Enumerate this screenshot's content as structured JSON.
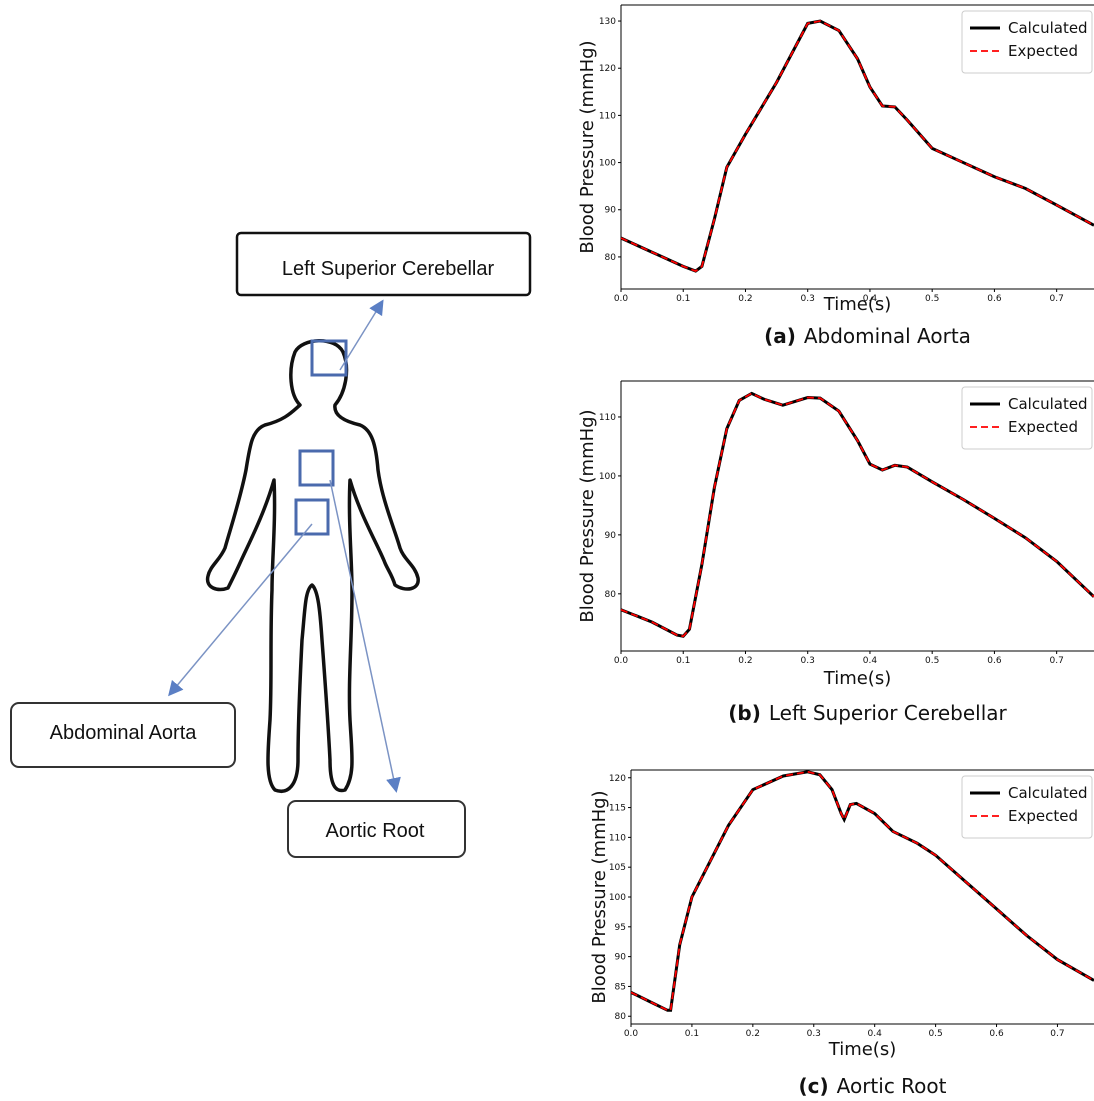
{
  "diagram": {
    "labels": [
      "Left Superior Cerebellar",
      "Abdominal Aorta",
      "Aortic Root"
    ]
  },
  "chart_data": [
    {
      "type": "line",
      "caption_label": "(a)",
      "caption": "Abdominal Aorta",
      "xlabel": "Time(s)",
      "ylabel": "Blood Pressure (mmHg)",
      "legend": "upper right",
      "x": [
        0,
        0.05,
        0.1,
        0.12,
        0.13,
        0.15,
        0.17,
        0.2,
        0.25,
        0.3,
        0.32,
        0.35,
        0.38,
        0.4,
        0.42,
        0.44,
        0.46,
        0.5,
        0.55,
        0.6,
        0.65,
        0.7,
        0.76
      ],
      "xlim": [
        0,
        0.76
      ],
      "xticks": [
        {
          "value": 0,
          "label": "0.0"
        },
        0.1,
        0.2,
        0.3,
        0.4,
        0.5,
        0.6,
        0.7
      ],
      "ylim": [
        73.2,
        133.4
      ],
      "yticks": [
        80,
        90,
        100,
        110,
        120,
        130
      ],
      "series": [
        {
          "name": "Calculated",
          "color": "#000000",
          "values": [
            84,
            81,
            78,
            77,
            78,
            88,
            99,
            106,
            117,
            129.5,
            130,
            128,
            122,
            116,
            112,
            111.8,
            109,
            103,
            100,
            97,
            94.5,
            91,
            86.7
          ]
        },
        {
          "name": "Expected",
          "color": "#ff0000",
          "values": [
            84,
            81,
            78,
            77,
            78,
            88,
            99,
            106,
            117,
            129.5,
            130,
            128,
            122,
            116,
            112,
            111.8,
            109,
            103,
            100,
            97,
            94.5,
            91,
            86.7
          ]
        }
      ]
    },
    {
      "type": "line",
      "caption_label": "(b)",
      "caption": "Left Superior Cerebellar",
      "xlabel": "Time(s)",
      "ylabel": "Blood Pressure (mmHg)",
      "legend": "upper right",
      "x": [
        0,
        0.05,
        0.09,
        0.1,
        0.11,
        0.13,
        0.15,
        0.17,
        0.19,
        0.21,
        0.23,
        0.26,
        0.3,
        0.32,
        0.35,
        0.38,
        0.4,
        0.42,
        0.44,
        0.46,
        0.5,
        0.55,
        0.6,
        0.65,
        0.7,
        0.76
      ],
      "xlim": [
        0,
        0.76
      ],
      "xticks": [
        {
          "value": 0,
          "label": "0.0"
        },
        0.1,
        0.2,
        0.3,
        0.4,
        0.5,
        0.6,
        0.7
      ],
      "ylim": [
        70.3,
        116.1
      ],
      "yticks": [
        80,
        90,
        100,
        110
      ],
      "series": [
        {
          "name": "Calculated",
          "color": "#000000",
          "values": [
            77.3,
            75.2,
            73,
            72.8,
            74,
            85,
            98,
            108,
            112.8,
            114,
            113,
            112,
            113.3,
            113.2,
            111,
            106,
            102,
            101,
            101.8,
            101.5,
            99,
            96,
            92.8,
            89.5,
            85.5,
            79.5
          ]
        },
        {
          "name": "Expected",
          "color": "#ff0000",
          "values": [
            77.3,
            75.2,
            73,
            72.8,
            74,
            85,
            98,
            108,
            112.8,
            114,
            113,
            112,
            113.3,
            113.2,
            111,
            106,
            102,
            101,
            101.8,
            101.5,
            99,
            96,
            92.8,
            89.5,
            85.5,
            79.5
          ]
        }
      ]
    },
    {
      "type": "line",
      "caption_label": "(c)",
      "caption": "Aortic Root",
      "xlabel": "Time(s)",
      "ylabel": "Blood Pressure (mmHg)",
      "legend": "upper right",
      "x": [
        0,
        0.03,
        0.06,
        0.065,
        0.08,
        0.1,
        0.13,
        0.16,
        0.2,
        0.25,
        0.29,
        0.31,
        0.33,
        0.345,
        0.35,
        0.36,
        0.37,
        0.4,
        0.43,
        0.47,
        0.5,
        0.55,
        0.6,
        0.65,
        0.7,
        0.76
      ],
      "xlim": [
        0,
        0.76
      ],
      "xticks": [
        {
          "value": 0,
          "label": "0.0"
        },
        0.1,
        0.2,
        0.3,
        0.4,
        0.5,
        0.6,
        0.7
      ],
      "ylim": [
        78.7,
        121.3
      ],
      "yticks": [
        80,
        85,
        90,
        95,
        100,
        105,
        110,
        115,
        120
      ],
      "series": [
        {
          "name": "Calculated",
          "color": "#000000",
          "values": [
            84,
            82.5,
            81,
            81,
            92,
            100,
            106,
            112,
            118,
            120.3,
            121,
            120.5,
            118,
            114,
            113,
            115.5,
            115.7,
            114,
            111,
            109,
            107,
            102.5,
            98,
            93.5,
            89.5,
            86
          ]
        },
        {
          "name": "Expected",
          "color": "#ff0000",
          "values": [
            84,
            82.5,
            81,
            81,
            92,
            100,
            106,
            112,
            118,
            120.3,
            121,
            120.5,
            118,
            114,
            113,
            115.5,
            115.7,
            114,
            111,
            109,
            107,
            102.5,
            98,
            93.5,
            89.5,
            86
          ]
        }
      ]
    }
  ]
}
